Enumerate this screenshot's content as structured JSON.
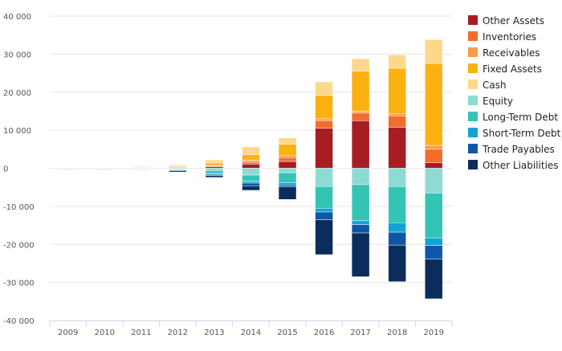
{
  "chart_data": {
    "type": "bar",
    "stacked": true,
    "categories": [
      "2009",
      "2010",
      "2011",
      "2012",
      "2013",
      "2014",
      "2015",
      "2016",
      "2017",
      "2018",
      "2019"
    ],
    "ylim": [
      -40000,
      40000
    ],
    "yticks": [
      40000,
      30000,
      20000,
      10000,
      0,
      -10000,
      -20000,
      -30000,
      -40000
    ],
    "ytick_labels": [
      "40 000",
      "30 000",
      "20 000",
      "10 000",
      "0",
      "-10 000",
      "-20 000",
      "-30 000",
      "-40 000"
    ],
    "grid": true,
    "legend_position": "right",
    "series": [
      {
        "name": "Other Assets",
        "color": "#a81c24",
        "values": [
          50,
          50,
          50,
          100,
          400,
          1100,
          1800,
          10500,
          12500,
          10800,
          1500
        ]
      },
      {
        "name": "Inventories",
        "color": "#f46c2c",
        "values": [
          50,
          50,
          50,
          100,
          200,
          500,
          1000,
          2000,
          2000,
          3000,
          3500
        ]
      },
      {
        "name": "Receivables",
        "color": "#f89b4b",
        "values": [
          50,
          50,
          50,
          200,
          300,
          500,
          500,
          500,
          500,
          500,
          1000
        ]
      },
      {
        "name": "Fixed Assets",
        "color": "#fbb112",
        "values": [
          50,
          50,
          150,
          200,
          500,
          1500,
          3000,
          6200,
          10500,
          12000,
          21500
        ]
      },
      {
        "name": "Cash",
        "color": "#fdd88a",
        "values": [
          100,
          100,
          200,
          300,
          800,
          2000,
          1700,
          3500,
          3300,
          3500,
          6300
        ]
      },
      {
        "name": "Equity",
        "color": "#8edbd4",
        "values": [
          -50,
          -50,
          -100,
          -200,
          -600,
          -1800,
          -1200,
          -4800,
          -4300,
          -4800,
          -6500
        ]
      },
      {
        "name": "Long-Term Debt",
        "color": "#33c4b3",
        "values": [
          -50,
          -50,
          -100,
          -200,
          -800,
          -1600,
          -2600,
          -5700,
          -9500,
          -9500,
          -11800
        ]
      },
      {
        "name": "Short-Term Debt",
        "color": "#11a3d4",
        "values": [
          -50,
          -50,
          -100,
          -100,
          -200,
          -500,
          -600,
          -1000,
          -1000,
          -2500,
          -2000
        ]
      },
      {
        "name": "Trade Payables",
        "color": "#0e57a8",
        "values": [
          -50,
          -50,
          -50,
          -200,
          -300,
          -700,
          -500,
          -2000,
          -2200,
          -3400,
          -3600
        ]
      },
      {
        "name": "Other Liabilities",
        "color": "#0a2d5c",
        "values": [
          -50,
          -50,
          -50,
          -300,
          -500,
          -1200,
          -3300,
          -9200,
          -11500,
          -9600,
          -10400
        ]
      }
    ]
  }
}
